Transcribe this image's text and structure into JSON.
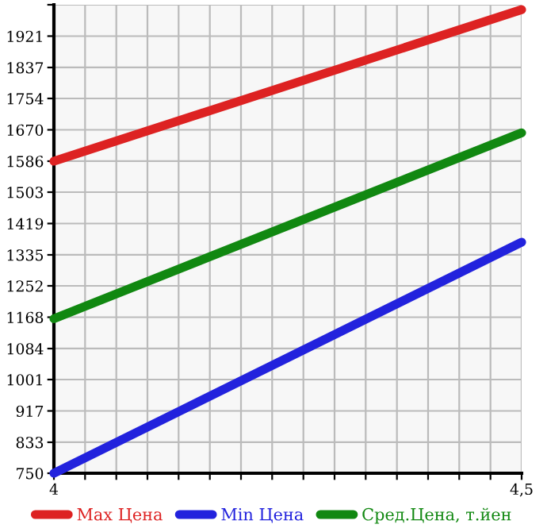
{
  "chart_data": {
    "type": "line",
    "x": [
      4,
      4.5
    ],
    "series": [
      {
        "name": "Max Цена",
        "color": "#dd2222",
        "values": [
          1586,
          1992
        ]
      },
      {
        "name": "Min Цена",
        "color": "#2222dd",
        "values": [
          750,
          1369
        ]
      },
      {
        "name": "Сред.Цена, т.йен",
        "color": "#118811",
        "values": [
          1164,
          1662
        ]
      }
    ],
    "xlim": [
      4,
      4.5
    ],
    "xticks": [
      4,
      {
        "value": 4.0333,
        "label": null
      },
      {
        "value": 4.0667,
        "label": null
      },
      {
        "value": 4.1,
        "label": null
      },
      {
        "value": 4.1333,
        "label": null
      },
      {
        "value": 4.1667,
        "label": null
      },
      {
        "value": 4.2,
        "label": null
      },
      {
        "value": 4.2333,
        "label": null
      },
      {
        "value": 4.2667,
        "label": null
      },
      {
        "value": 4.3,
        "label": null
      },
      {
        "value": 4.3333,
        "label": null
      },
      {
        "value": 4.3667,
        "label": null
      },
      {
        "value": 4.4,
        "label": null
      },
      {
        "value": 4.4333,
        "label": null
      },
      {
        "value": 4.4667,
        "label": null
      },
      {
        "value": 4.5,
        "label": "4,5"
      }
    ],
    "ylim": [
      750,
      2005
    ],
    "yticks": [
      750,
      833,
      917,
      1001,
      1084,
      1168,
      1252,
      1335,
      1419,
      1503,
      1586,
      1670,
      1754,
      1837,
      1921,
      {
        "value": 2005,
        "label": null
      }
    ],
    "grid": true,
    "legend": "bottom",
    "marker": "none",
    "line_style": "solid"
  }
}
